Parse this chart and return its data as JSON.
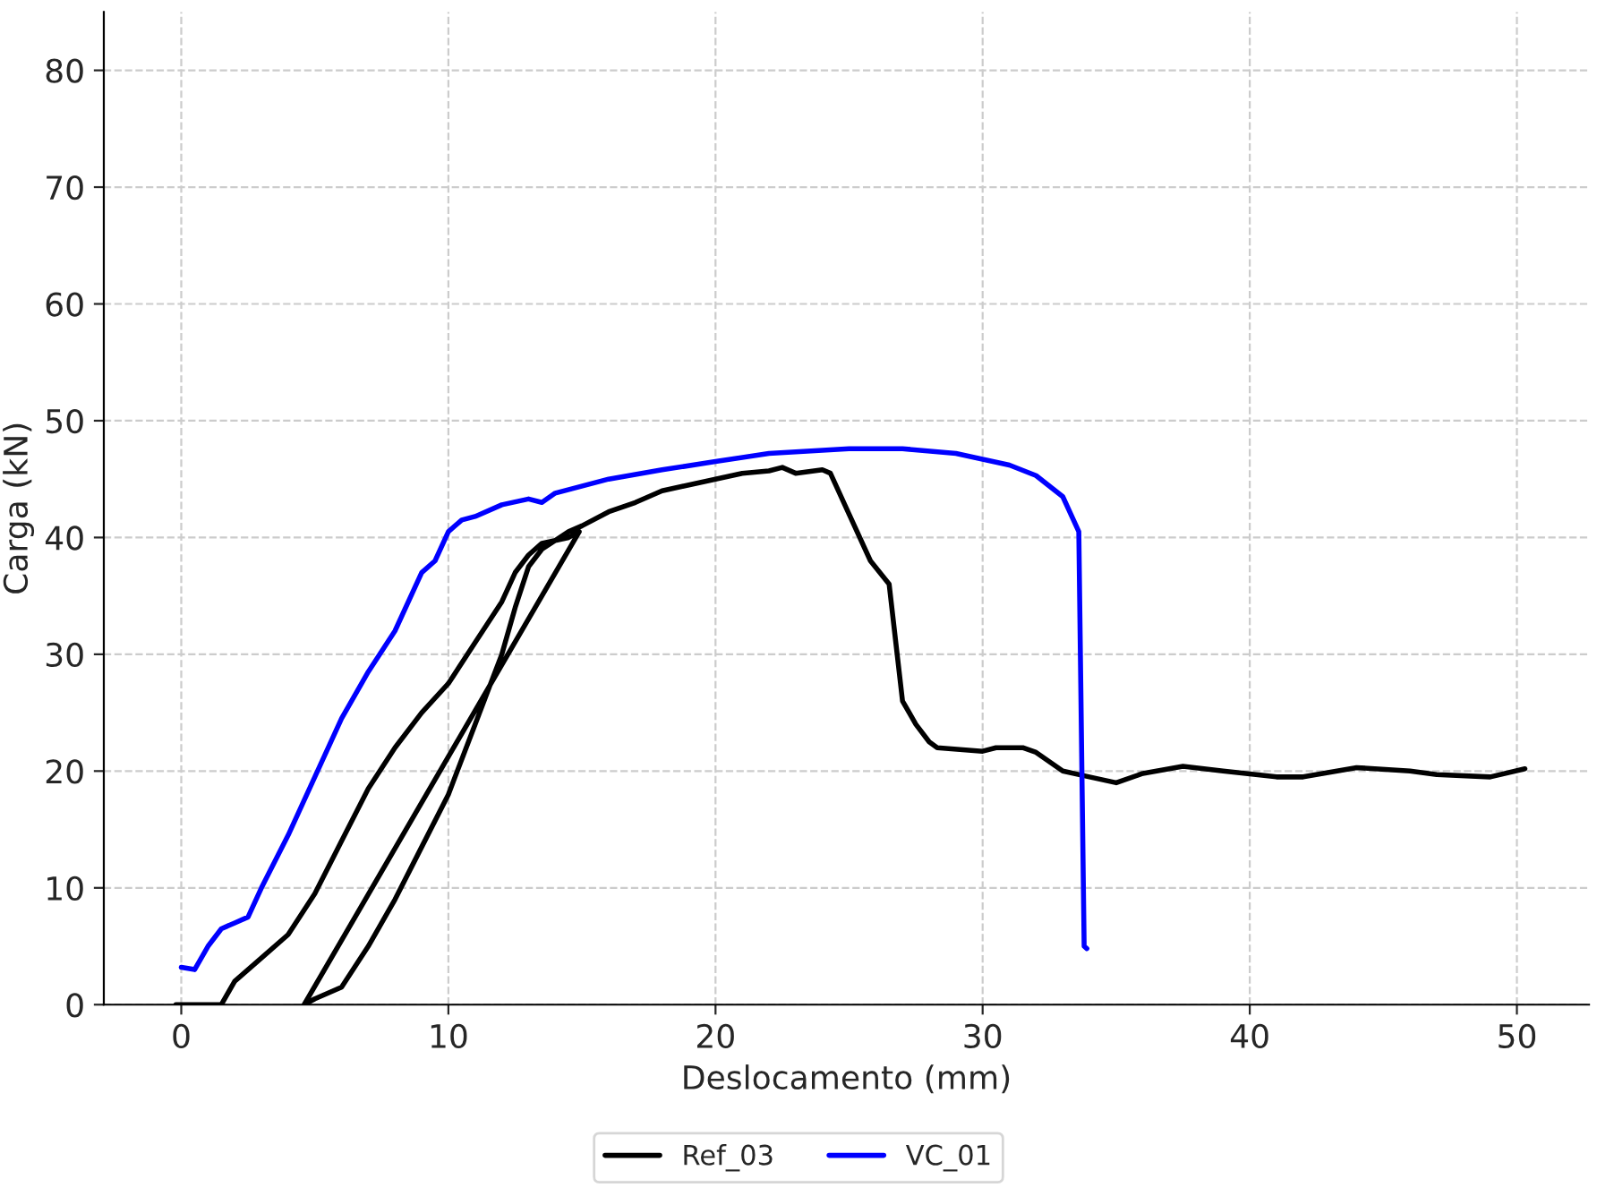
{
  "chart_data": {
    "type": "line",
    "xlabel": "Deslocamento (mm)",
    "ylabel": "Carga (kN)",
    "xlim": [
      -2.9,
      52.7
    ],
    "ylim": [
      0,
      85
    ],
    "xticks": [
      0,
      10,
      20,
      30,
      40,
      50
    ],
    "yticks": [
      0,
      10,
      20,
      30,
      40,
      50,
      60,
      70,
      80
    ],
    "grid": true,
    "legend": "bottom",
    "line_style": "solid",
    "marker": "none",
    "series": [
      {
        "name": "Ref_03",
        "color": "#000000",
        "x": [
          -0.2,
          1.5,
          2,
          3,
          4,
          5,
          6,
          7,
          8,
          9,
          10,
          11,
          12,
          12.5,
          13,
          13.5,
          14.5,
          14.9,
          4.6,
          5,
          6,
          7,
          8,
          9,
          10,
          11,
          12,
          12.5,
          13,
          13.5,
          14.5,
          15,
          16,
          17,
          18,
          20,
          21,
          22,
          22.5,
          23,
          24,
          24.3,
          25,
          25.8,
          26.5,
          26.8,
          27,
          27.5,
          28,
          28.3,
          30,
          30.5,
          31.5,
          32,
          33,
          34,
          35,
          36,
          37.5,
          39,
          41,
          42,
          44,
          46,
          47,
          49,
          50.3
        ],
        "values": [
          0,
          0,
          2,
          4,
          6,
          9.5,
          14,
          18.5,
          22,
          25,
          27.5,
          31,
          34.5,
          37,
          38.5,
          39.5,
          40,
          40.5,
          0,
          0.5,
          1.5,
          5,
          9,
          13.5,
          18,
          24,
          30,
          34,
          37.5,
          39,
          40.5,
          41,
          42.2,
          43,
          44,
          45,
          45.5,
          45.7,
          46,
          45.5,
          45.8,
          45.5,
          42,
          38,
          36,
          30,
          26,
          24,
          22.5,
          22,
          21.7,
          22,
          22,
          21.6,
          20,
          19.5,
          19,
          19.8,
          20.4,
          20,
          19.5,
          19.5,
          20.3,
          20,
          19.7,
          19.5,
          20.2
        ]
      },
      {
        "name": "VC_01",
        "color": "#0000ff",
        "x": [
          0,
          0.5,
          1,
          1.5,
          2,
          2.5,
          3,
          4,
          5,
          6,
          7,
          8,
          9,
          9.5,
          10,
          10.5,
          11,
          12,
          13,
          13.5,
          14,
          16,
          18,
          20,
          22,
          25,
          27,
          29,
          31,
          32,
          33,
          33.6,
          33.8,
          33.9
        ],
        "values": [
          3.2,
          3,
          5,
          6.5,
          7,
          7.5,
          10,
          14.5,
          19.5,
          24.5,
          28.5,
          32,
          37,
          38,
          40.5,
          41.5,
          41.8,
          42.8,
          43.3,
          43,
          43.8,
          45,
          45.8,
          46.5,
          47.2,
          47.6,
          47.6,
          47.2,
          46.2,
          45.3,
          43.5,
          40.5,
          5,
          4.8
        ]
      }
    ]
  }
}
